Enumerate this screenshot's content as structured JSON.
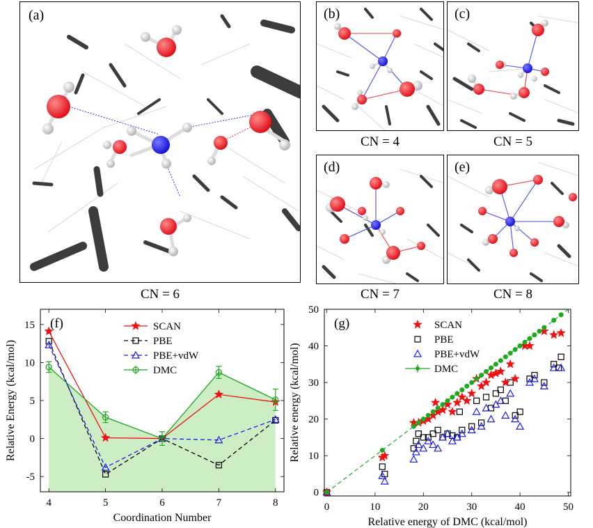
{
  "panels": {
    "a": {
      "label": "(a)",
      "cn": "CN = 6"
    },
    "b": {
      "label": "(b)",
      "cn": "CN = 4"
    },
    "c": {
      "label": "(c)",
      "cn": "CN = 5"
    },
    "d": {
      "label": "(d)",
      "cn": "CN = 7"
    },
    "e": {
      "label": "(e)",
      "cn": "CN = 8"
    }
  },
  "colors": {
    "nitrogen": "#1414d8",
    "oxygen": "#e0121c",
    "hydrogen": "#eeeeee",
    "stick": "#3c3c3c",
    "scan": "#ee1111",
    "pbe": "#000000",
    "pbevdw": "#1a1aee",
    "dmc": "#1fa81f",
    "dmc_fill": "#cdeec4"
  },
  "chart_data": [
    {
      "panel_label": "(f)",
      "type": "line",
      "xlabel": "Coordination Number",
      "ylabel": "Relative Energy (kcal/mol)",
      "xlim": [
        3.85,
        8.15
      ],
      "ylim": [
        -7,
        17
      ],
      "xticks": [
        4,
        5,
        6,
        7,
        8
      ],
      "yticks": [
        -5,
        0,
        5,
        10,
        15
      ],
      "categories": [
        4,
        5,
        6,
        7,
        8
      ],
      "series": [
        {
          "name": "SCAN",
          "marker": "star",
          "dash": "solid",
          "values": [
            14.1,
            0.1,
            0.0,
            5.8,
            4.8
          ]
        },
        {
          "name": "PBE",
          "marker": "square",
          "dash": "dashed",
          "values": [
            12.8,
            -4.7,
            0.0,
            -3.5,
            2.4
          ]
        },
        {
          "name": "PBE+vdW",
          "marker": "triangle",
          "dash": "dashed",
          "values": [
            12.3,
            -3.8,
            0.0,
            -0.2,
            2.5
          ]
        },
        {
          "name": "DMC",
          "marker": "circle",
          "dash": "solid",
          "values": [
            9.4,
            2.8,
            0.0,
            8.7,
            5.1
          ],
          "errors": [
            0.7,
            0.7,
            0.9,
            0.8,
            1.4
          ],
          "filled": true
        }
      ]
    },
    {
      "panel_label": "(g)",
      "type": "scatter",
      "xlabel": "Relative energy of DMC (kcal/mol)",
      "ylabel": "Relative energy (kcal/mol)",
      "xlim": [
        -0.5,
        50.5
      ],
      "ylim": [
        -1,
        50
      ],
      "xticks": [
        0,
        10,
        20,
        30,
        40,
        50
      ],
      "yticks": [
        0,
        10,
        20,
        30,
        40,
        50
      ],
      "series": [
        {
          "name": "SCAN",
          "marker": "star",
          "points": [
            [
              0,
              0
            ],
            [
              11.5,
              9.5
            ],
            [
              12,
              10
            ],
            [
              18,
              19
            ],
            [
              19,
              19
            ],
            [
              20,
              19.5
            ],
            [
              21,
              20
            ],
            [
              22,
              21
            ],
            [
              22.5,
              24.5
            ],
            [
              23,
              22
            ],
            [
              24,
              22.5
            ],
            [
              25,
              24
            ],
            [
              26,
              22
            ],
            [
              27,
              24.5
            ],
            [
              28,
              26
            ],
            [
              29,
              25
            ],
            [
              30,
              27
            ],
            [
              31,
              31
            ],
            [
              32,
              29
            ],
            [
              33,
              30
            ],
            [
              34,
              32
            ],
            [
              35,
              32.5
            ],
            [
              36,
              33
            ],
            [
              37,
              30
            ],
            [
              38,
              35
            ],
            [
              39,
              31
            ],
            [
              41,
              40
            ],
            [
              42,
              40
            ],
            [
              45,
              44
            ],
            [
              47,
              43
            ],
            [
              48.5,
              43.5
            ]
          ]
        },
        {
          "name": "PBE",
          "marker": "square",
          "points": [
            [
              0,
              0
            ],
            [
              11.5,
              7
            ],
            [
              12,
              5
            ],
            [
              18,
              12
            ],
            [
              18.5,
              14
            ],
            [
              19,
              16
            ],
            [
              20,
              15
            ],
            [
              21,
              15
            ],
            [
              22,
              16
            ],
            [
              23,
              17
            ],
            [
              24,
              15
            ],
            [
              25,
              16
            ],
            [
              26,
              15.5
            ],
            [
              27,
              15
            ],
            [
              27.5,
              22
            ],
            [
              28,
              17
            ],
            [
              30,
              18
            ],
            [
              31,
              25
            ],
            [
              32,
              19
            ],
            [
              33,
              26
            ],
            [
              34,
              23
            ],
            [
              35,
              27
            ],
            [
              36,
              28
            ],
            [
              37,
              25
            ],
            [
              38,
              30
            ],
            [
              39,
              21
            ],
            [
              40,
              22
            ],
            [
              42,
              31
            ],
            [
              43,
              32
            ],
            [
              45,
              30
            ],
            [
              47,
              35
            ],
            [
              48,
              34
            ],
            [
              48.5,
              37
            ]
          ]
        },
        {
          "name": "PBE+vdW",
          "marker": "triangle",
          "points": [
            [
              0,
              0
            ],
            [
              11.5,
              4.5
            ],
            [
              12,
              3
            ],
            [
              18,
              9
            ],
            [
              18.5,
              11
            ],
            [
              19,
              13
            ],
            [
              20,
              12
            ],
            [
              21,
              14
            ],
            [
              22,
              13
            ],
            [
              23,
              12
            ],
            [
              24,
              15
            ],
            [
              25,
              16
            ],
            [
              26,
              14
            ],
            [
              27,
              15
            ],
            [
              28,
              16
            ],
            [
              30,
              17
            ],
            [
              31,
              22
            ],
            [
              32,
              18
            ],
            [
              33,
              23
            ],
            [
              34,
              20
            ],
            [
              35,
              24
            ],
            [
              36,
              25
            ],
            [
              37,
              21
            ],
            [
              38,
              27
            ],
            [
              39,
              20
            ],
            [
              40,
              18
            ],
            [
              42,
              30
            ],
            [
              43,
              31
            ],
            [
              45,
              29
            ],
            [
              47,
              34
            ],
            [
              48.5,
              34
            ]
          ]
        },
        {
          "name": "DMC",
          "marker": "circle",
          "points": [
            [
              0,
              0
            ],
            [
              11.5,
              11.5
            ],
            [
              18,
              18
            ],
            [
              19,
              19
            ],
            [
              20,
              20
            ],
            [
              21,
              21
            ],
            [
              22,
              22
            ],
            [
              23,
              23
            ],
            [
              24,
              24
            ],
            [
              25,
              25
            ],
            [
              26,
              26
            ],
            [
              27,
              27
            ],
            [
              28,
              28
            ],
            [
              29,
              29
            ],
            [
              30,
              30
            ],
            [
              31,
              31
            ],
            [
              32,
              32
            ],
            [
              33,
              33
            ],
            [
              34,
              34
            ],
            [
              35,
              35
            ],
            [
              36,
              36
            ],
            [
              37,
              37
            ],
            [
              38,
              38
            ],
            [
              39,
              39
            ],
            [
              40,
              40
            ],
            [
              41,
              41
            ],
            [
              42,
              42
            ],
            [
              43,
              43
            ],
            [
              44,
              44
            ],
            [
              45,
              45
            ],
            [
              47,
              47
            ],
            [
              48.5,
              48.5
            ]
          ],
          "fit_line": [
            [
              0,
              0
            ],
            [
              50,
              50
            ]
          ]
        }
      ]
    }
  ]
}
